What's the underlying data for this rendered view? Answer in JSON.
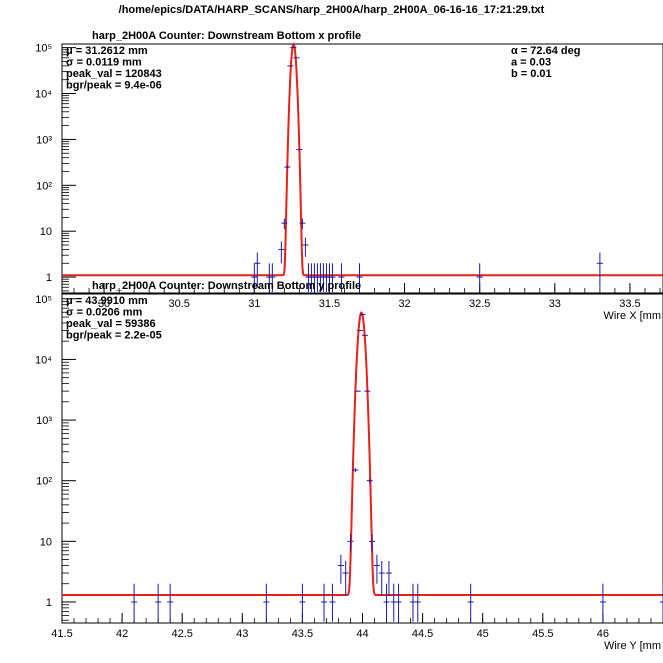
{
  "page_title": "/home/epics/DATA/HARP_SCANS/harp_2H00A/harp_2H00A_06-16-16_17:21:29.txt",
  "colors": {
    "fit_line": "#e8201a",
    "data_points": "#1a1aa8",
    "frame": "#000000"
  },
  "chart_data": [
    {
      "type": "scatter",
      "title": "harp_2H00A   Counter: Downstream Bottom x profile",
      "xlabel": "Wire X [mm",
      "ylabel": "",
      "log_y": true,
      "xlim": [
        29.72,
        33.72
      ],
      "ylim": [
        0.45,
        120000
      ],
      "x_ticks": [
        "30",
        "30.5",
        "31",
        "31.5",
        "32",
        "32.5",
        "33",
        "33.5"
      ],
      "y_ticks": [
        "1",
        "10",
        "10²",
        "10³",
        "10⁴",
        "10⁵"
      ],
      "stats": [
        "μ = 31.2612 mm",
        "σ = 0.0119 mm",
        "peak_val = 120843",
        "bgr/peak = 9.4e-06"
      ],
      "params": [
        "α = 72.64 deg",
        "a = 0.03",
        "b = 0.01"
      ],
      "fit": {
        "mean": 31.2612,
        "sigma": 0.0119,
        "peak": 120843,
        "background": 1.1
      },
      "points": [
        {
          "x": 31.0,
          "y": 1
        },
        {
          "x": 31.02,
          "y": 2
        },
        {
          "x": 31.1,
          "y": 1
        },
        {
          "x": 31.12,
          "y": 1
        },
        {
          "x": 31.18,
          "y": 4
        },
        {
          "x": 31.2,
          "y": 15
        },
        {
          "x": 31.22,
          "y": 250
        },
        {
          "x": 31.24,
          "y": 40000
        },
        {
          "x": 31.26,
          "y": 100000
        },
        {
          "x": 31.28,
          "y": 60000
        },
        {
          "x": 31.3,
          "y": 600
        },
        {
          "x": 31.32,
          "y": 15
        },
        {
          "x": 31.34,
          "y": 5
        },
        {
          "x": 31.36,
          "y": 1
        },
        {
          "x": 31.38,
          "y": 1
        },
        {
          "x": 31.4,
          "y": 1
        },
        {
          "x": 31.42,
          "y": 1
        },
        {
          "x": 31.44,
          "y": 1
        },
        {
          "x": 31.46,
          "y": 1
        },
        {
          "x": 31.48,
          "y": 1
        },
        {
          "x": 31.5,
          "y": 1
        },
        {
          "x": 31.52,
          "y": 1
        },
        {
          "x": 31.58,
          "y": 1
        },
        {
          "x": 31.7,
          "y": 1
        },
        {
          "x": 32.5,
          "y": 1
        },
        {
          "x": 33.3,
          "y": 2
        }
      ]
    },
    {
      "type": "scatter",
      "title": "harp_2H00A  Counter: Downstream Bottom y profile",
      "xlabel": "Wire Y [mm",
      "ylabel": "",
      "log_y": true,
      "xlim": [
        41.5,
        46.5
      ],
      "ylim": [
        0.45,
        120000
      ],
      "x_ticks": [
        "41.5",
        "42",
        "42.5",
        "43",
        "43.5",
        "44",
        "44.5",
        "45",
        "45.5",
        "46"
      ],
      "y_ticks": [
        "1",
        "10",
        "10²",
        "10³",
        "10⁴",
        "10⁵"
      ],
      "stats": [
        "μ = 43.9910 mm",
        "σ = 0.0206 mm",
        "peak_val = 59386",
        "bgr/peak = 2.2e-05"
      ],
      "params": [],
      "fit": {
        "mean": 43.991,
        "sigma": 0.0206,
        "peak": 59386,
        "background": 1.3
      },
      "points": [
        {
          "x": 42.1,
          "y": 1
        },
        {
          "x": 42.3,
          "y": 1
        },
        {
          "x": 42.4,
          "y": 1
        },
        {
          "x": 43.2,
          "y": 1
        },
        {
          "x": 43.5,
          "y": 1
        },
        {
          "x": 43.68,
          "y": 1
        },
        {
          "x": 43.75,
          "y": 1
        },
        {
          "x": 43.82,
          "y": 4
        },
        {
          "x": 43.86,
          "y": 3
        },
        {
          "x": 43.9,
          "y": 10
        },
        {
          "x": 43.94,
          "y": 150
        },
        {
          "x": 43.96,
          "y": 3000
        },
        {
          "x": 43.98,
          "y": 30000
        },
        {
          "x": 44.0,
          "y": 55000
        },
        {
          "x": 44.02,
          "y": 25000
        },
        {
          "x": 44.04,
          "y": 3000
        },
        {
          "x": 44.06,
          "y": 100
        },
        {
          "x": 44.08,
          "y": 10
        },
        {
          "x": 44.12,
          "y": 4
        },
        {
          "x": 44.16,
          "y": 3
        },
        {
          "x": 44.2,
          "y": 1
        },
        {
          "x": 44.22,
          "y": 3
        },
        {
          "x": 44.26,
          "y": 1
        },
        {
          "x": 44.3,
          "y": 1
        },
        {
          "x": 44.42,
          "y": 1
        },
        {
          "x": 44.46,
          "y": 1
        },
        {
          "x": 44.9,
          "y": 1
        },
        {
          "x": 46.0,
          "y": 1
        },
        {
          "x": 46.5,
          "y": 1
        }
      ]
    }
  ]
}
